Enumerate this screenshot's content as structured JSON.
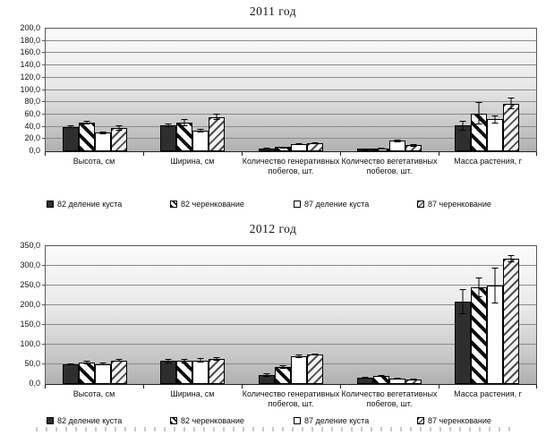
{
  "chart_data": [
    {
      "type": "bar",
      "title": "2011 год",
      "ylim": [
        0,
        200
      ],
      "ytick_step": 20,
      "grid": true,
      "legend_position": "bottom",
      "tick_decimal_separator": ",",
      "categories": [
        "Высота, см",
        "Ширина, см",
        "Количество генеративных побегов, шт.",
        "Количество вегетативных побегов, шт.",
        "Масса растения, г"
      ],
      "series": [
        {
          "name": "82 деление куста",
          "pattern": "solid-dark",
          "values": [
            40,
            42,
            5,
            4,
            42
          ],
          "errors": [
            2,
            3,
            1,
            1,
            8
          ]
        },
        {
          "name": "82 черенкование",
          "pattern": "hatch-bold-down",
          "values": [
            47,
            47,
            7,
            5,
            62
          ],
          "errors": [
            3,
            6,
            1,
            1,
            18
          ]
        },
        {
          "name": "87 деление куста",
          "pattern": "white",
          "values": [
            30,
            34,
            12,
            17,
            52
          ],
          "errors": [
            2,
            3,
            1,
            2,
            6
          ]
        },
        {
          "name": "87 черенкование",
          "pattern": "hatch-light-up",
          "values": [
            38,
            56,
            13,
            10,
            78
          ],
          "errors": [
            4,
            5,
            2,
            2,
            10
          ]
        }
      ]
    },
    {
      "type": "bar",
      "title": "2012 год",
      "ylim": [
        0,
        350
      ],
      "ytick_step": 50,
      "grid": true,
      "legend_position": "bottom",
      "tick_decimal_separator": ",",
      "categories": [
        "Высота, см",
        "Ширина, см",
        "Количество генеративных побегов, шт.",
        "Количество вегетативных побегов, шт.",
        "Масса растения, г"
      ],
      "series": [
        {
          "name": "82 деление куста",
          "pattern": "solid-dark",
          "values": [
            50,
            58,
            23,
            17,
            210
          ],
          "errors": [
            3,
            5,
            5,
            2,
            32
          ]
        },
        {
          "name": "82 черенкование",
          "pattern": "hatch-bold-down",
          "values": [
            54,
            58,
            43,
            20,
            245
          ],
          "errors": [
            4,
            5,
            4,
            2,
            25
          ]
        },
        {
          "name": "87 деление куста",
          "pattern": "white",
          "values": [
            51,
            60,
            70,
            13,
            250
          ],
          "errors": [
            4,
            6,
            4,
            2,
            45
          ]
        },
        {
          "name": "87 черенкование",
          "pattern": "hatch-light-up",
          "values": [
            60,
            64,
            75,
            11,
            318
          ],
          "errors": [
            4,
            5,
            3,
            2,
            10
          ]
        }
      ]
    }
  ],
  "colors": {
    "bar_solid": "#2e2e2e",
    "bar_border": "#000000",
    "gridline": "#8a8a8a",
    "plot_gradient_top": "#fbfbfb",
    "plot_gradient_bottom": "#b0b0b0"
  }
}
